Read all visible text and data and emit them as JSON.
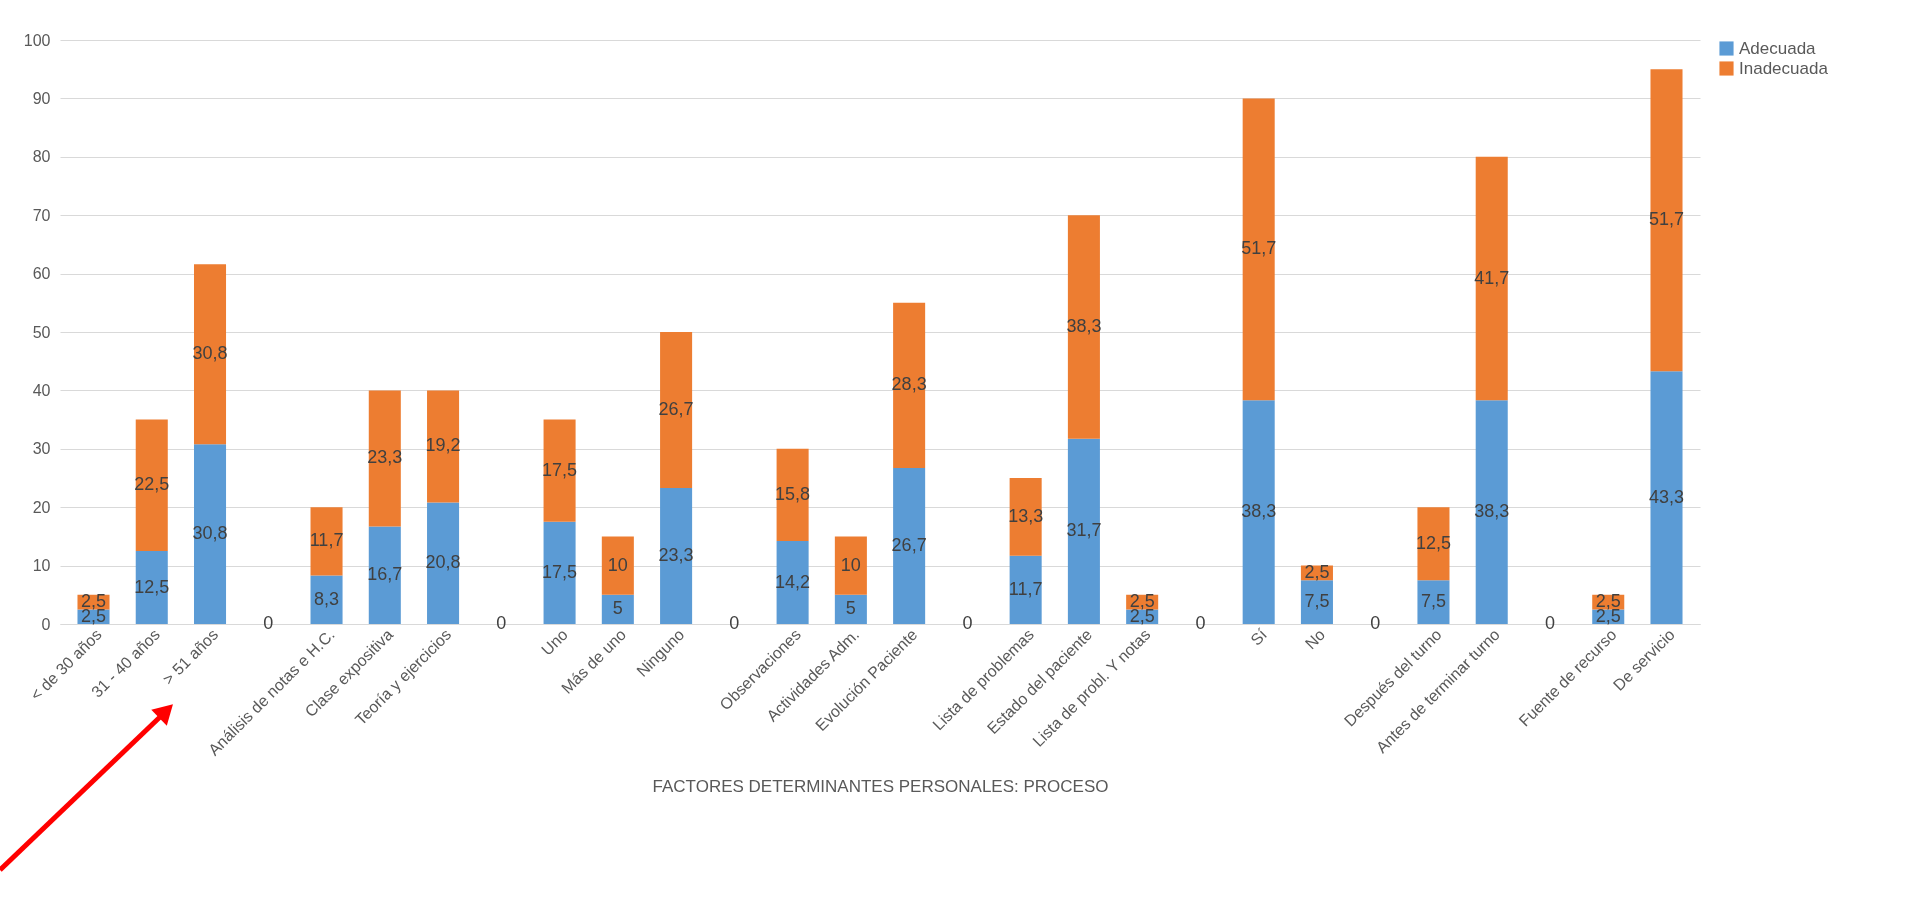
{
  "chart_data": {
    "type": "bar",
    "stacked": true,
    "xlabel": "FACTORES DETERMINANTES PERSONALES: PROCESO",
    "categories": [
      "< de 30 años",
      "31 - 40 años",
      "> 51 años",
      null,
      "Análisis de notas e H.C.",
      "Clase expositiva",
      "Teoría y ejercicios",
      null,
      "Uno",
      "Más de uno",
      "Ninguno",
      null,
      "Observaciones",
      "Actividades Adm.",
      "Evolución Paciente",
      null,
      "Lista de problemas",
      "Estado del paciente",
      "Lista de probl. Y notas",
      null,
      "Sí",
      "No",
      null,
      "Después del turno",
      "Antes de terminar turno",
      null,
      "Fuente de recurso",
      "De servicio"
    ],
    "series": [
      {
        "name": "Adecuada",
        "color": "#5b9bd5",
        "values": [
          2.5,
          12.5,
          30.8,
          0,
          8.3,
          16.7,
          20.8,
          0,
          17.5,
          5,
          23.3,
          0,
          14.2,
          5,
          26.7,
          0,
          11.7,
          31.7,
          2.5,
          0,
          38.3,
          7.5,
          0,
          7.5,
          38.3,
          0,
          2.5,
          43.3
        ],
        "value_labels": [
          "2,5",
          "12,5",
          "30,8",
          "0",
          "8,3",
          "16,7",
          "20,8",
          "0",
          "17,5",
          "5",
          "23,3",
          "0",
          "14,2",
          "5",
          "26,7",
          "0",
          "11,7",
          "31,7",
          "2,5",
          "0",
          "38,3",
          "7,5",
          "0",
          "7,5",
          "38,3",
          "0",
          "2,5",
          "43,3"
        ]
      },
      {
        "name": "Inadecuada",
        "color": "#ed7d31",
        "values": [
          2.5,
          22.5,
          30.8,
          null,
          11.7,
          23.3,
          19.2,
          null,
          17.5,
          10,
          26.7,
          null,
          15.8,
          10,
          28.3,
          null,
          13.3,
          38.3,
          2.5,
          null,
          51.7,
          2.5,
          null,
          12.5,
          41.7,
          null,
          2.5,
          51.7
        ],
        "value_labels": [
          "2,5",
          "22,5",
          "30,8",
          null,
          "11,7",
          "23,3",
          "19,2",
          null,
          "17,5",
          "10",
          "26,7",
          null,
          "15,8",
          "10",
          "28,3",
          null,
          "13,3",
          "38,3",
          "2,5",
          null,
          "51,7",
          "2,5",
          null,
          "12,5",
          "41,7",
          null,
          "2,5",
          "51,7"
        ]
      }
    ],
    "ylim": [
      0,
      100
    ],
    "yticks": [
      0,
      10,
      20,
      30,
      40,
      50,
      60,
      70,
      80,
      90,
      100
    ],
    "grid": "y",
    "legend": "right"
  }
}
